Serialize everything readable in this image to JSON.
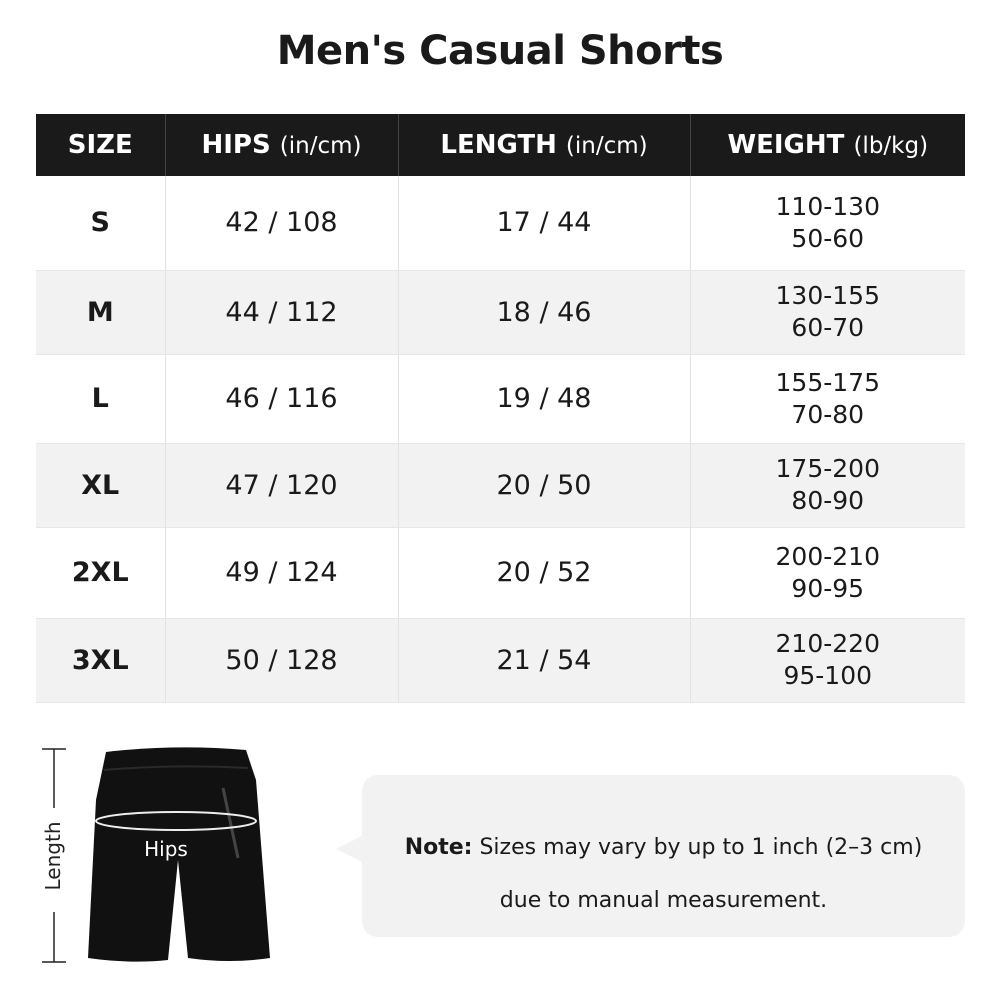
{
  "title": "Men's Casual Shorts",
  "table": {
    "headers": [
      {
        "label": "SIZE",
        "unit": ""
      },
      {
        "label": "HIPS",
        "unit": "(in/cm)"
      },
      {
        "label": "LENGTH",
        "unit": "(in/cm)"
      },
      {
        "label": "WEIGHT",
        "unit": "(lb/kg)"
      }
    ],
    "rows": [
      {
        "size": "S",
        "hips": "42 / 108",
        "length": "17 / 44",
        "weight_lb": "110-130",
        "weight_kg": "50-60"
      },
      {
        "size": "M",
        "hips": "44 / 112",
        "length": "18 / 46",
        "weight_lb": "130-155",
        "weight_kg": "60-70"
      },
      {
        "size": "L",
        "hips": "46 / 116",
        "length": "19 / 48",
        "weight_lb": "155-175",
        "weight_kg": "70-80"
      },
      {
        "size": "XL",
        "hips": "47 / 120",
        "length": "20 / 50",
        "weight_lb": "175-200",
        "weight_kg": "80-90"
      },
      {
        "size": "2XL",
        "hips": "49 / 124",
        "length": "20 / 52",
        "weight_lb": "200-210",
        "weight_kg": "90-95"
      },
      {
        "size": "3XL",
        "hips": "50 / 128",
        "length": "21 / 54",
        "weight_lb": "210-220",
        "weight_kg": "95-100"
      }
    ]
  },
  "diagram": {
    "length_label": "Length",
    "hips_label": "Hips"
  },
  "note": {
    "label": "Note:",
    "line1": "Sizes may vary by up to 1 inch (2–3 cm)",
    "line2": "due to manual measurement."
  }
}
